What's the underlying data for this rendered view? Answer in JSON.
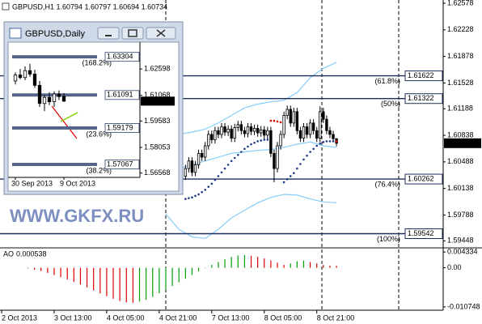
{
  "chart_data": [
    {
      "type": "candlestick",
      "header": "GBPUSD,H1 1.60794 1.60797 1.60694 1.60734",
      "watermark": "WWW.GKFX.RU",
      "x": [
        56,
        57,
        58,
        59,
        60,
        61,
        62,
        63,
        64,
        65,
        66,
        67,
        68,
        69,
        70,
        71,
        72,
        73,
        74,
        75,
        76,
        77,
        78,
        79,
        80,
        81,
        82,
        83,
        84,
        85,
        86,
        87,
        88,
        89,
        90,
        91,
        92,
        93,
        94,
        95,
        96,
        97,
        98,
        99,
        100,
        101,
        102
      ],
      "open": [
        1.603,
        1.604,
        1.605,
        1.6035,
        1.6045,
        1.606,
        1.6055,
        1.607,
        1.6085,
        1.6078,
        1.609,
        1.6085,
        1.6095,
        1.6088,
        1.6092,
        1.608,
        1.6094,
        1.6098,
        1.609,
        1.6086,
        1.6095,
        1.6089,
        1.6093,
        1.6087,
        1.6091,
        1.6084,
        1.609,
        1.606,
        1.604,
        1.607,
        1.6085,
        1.611,
        1.6118,
        1.61,
        1.6115,
        1.609,
        1.608,
        1.6095,
        1.6085,
        1.61,
        1.609,
        1.608,
        1.6115,
        1.6105,
        1.609,
        1.6085,
        1.60794
      ],
      "high": [
        1.6045,
        1.6055,
        1.6055,
        1.605,
        1.6065,
        1.6065,
        1.6075,
        1.609,
        1.609,
        1.6095,
        1.6095,
        1.61,
        1.61,
        1.6097,
        1.6097,
        1.6099,
        1.6103,
        1.6103,
        1.6095,
        1.61,
        1.61,
        1.6098,
        1.6098,
        1.6096,
        1.6096,
        1.6095,
        1.6095,
        1.6065,
        1.6075,
        1.609,
        1.6115,
        1.6123,
        1.6123,
        1.612,
        1.612,
        1.6095,
        1.61,
        1.61,
        1.6105,
        1.6105,
        1.6095,
        1.6122,
        1.612,
        1.611,
        1.6095,
        1.609,
        1.60797
      ],
      "low": [
        1.6025,
        1.6035,
        1.603,
        1.603,
        1.604,
        1.605,
        1.605,
        1.6065,
        1.6073,
        1.6073,
        1.608,
        1.608,
        1.6083,
        1.6083,
        1.6075,
        1.6075,
        1.6089,
        1.6085,
        1.6081,
        1.6081,
        1.6084,
        1.6084,
        1.6082,
        1.6082,
        1.6079,
        1.6079,
        1.6055,
        1.6022,
        1.6035,
        1.6065,
        1.608,
        1.6105,
        1.6095,
        1.6095,
        1.6085,
        1.6075,
        1.6075,
        1.608,
        1.608,
        1.6085,
        1.6075,
        1.6075,
        1.61,
        1.6085,
        1.608,
        1.6075,
        1.60694
      ],
      "close": [
        1.604,
        1.605,
        1.6035,
        1.6045,
        1.606,
        1.6055,
        1.607,
        1.6085,
        1.6078,
        1.609,
        1.6085,
        1.6095,
        1.6088,
        1.6092,
        1.608,
        1.6094,
        1.6098,
        1.609,
        1.6086,
        1.6095,
        1.6089,
        1.6093,
        1.6087,
        1.6091,
        1.6084,
        1.609,
        1.606,
        1.604,
        1.607,
        1.6085,
        1.611,
        1.6118,
        1.61,
        1.6115,
        1.609,
        1.608,
        1.6095,
        1.6085,
        1.61,
        1.609,
        1.608,
        1.6115,
        1.6105,
        1.609,
        1.6085,
        1.60794,
        1.60734
      ],
      "sar": [
        1.6,
        1.6001,
        1.6002,
        1.6004,
        1.6006,
        1.6009,
        1.6012,
        1.6016,
        1.602,
        1.6025,
        1.603,
        1.6035,
        1.604,
        1.6045,
        1.605,
        1.6054,
        1.6058,
        1.6062,
        1.6066,
        1.6069,
        1.6072,
        1.6074,
        1.6076,
        1.6077,
        1.6078,
        1.6078,
        1.6103,
        1.6103,
        1.6102,
        1.6101,
        1.6022,
        1.6026,
        1.603,
        1.6034,
        1.604,
        1.6046,
        1.6052,
        1.6057,
        1.6062,
        1.6066,
        1.607,
        1.6073,
        1.6075,
        1.6076,
        1.6076,
        1.6076,
        1.6076
      ],
      "band_x": [
        50,
        54,
        58,
        62,
        66,
        70,
        74,
        78,
        82,
        86,
        90,
        94,
        98,
        102
      ],
      "band_upper": [
        1.608,
        1.6085,
        1.6088,
        1.6092,
        1.61,
        1.611,
        1.612,
        1.6125,
        1.6128,
        1.613,
        1.614,
        1.616,
        1.6172,
        1.618
      ],
      "band_middle": [
        1.6035,
        1.604,
        1.6045,
        1.605,
        1.6055,
        1.606,
        1.6062,
        1.6064,
        1.6065,
        1.6068,
        1.6072,
        1.6075,
        1.607,
        1.6068
      ],
      "band_lower": [
        1.598,
        1.596,
        1.595,
        1.5948,
        1.596,
        1.5975,
        1.5985,
        1.5995,
        1.6002,
        1.6006,
        1.6005,
        1.6,
        1.5996,
        1.5995
      ],
      "up_color": "#ffffff",
      "down_color": "#000000",
      "wick_color": "#000000",
      "sar_below_color": "#1f3c88",
      "sar_above_color": "#e00000",
      "band_color": "#87cefa",
      "level_color": "#1c2f5c",
      "levels": [
        {
          "value": 1.61622,
          "tag": "(61.8%)"
        },
        {
          "value": 1.61322,
          "tag": "(50%)"
        },
        {
          "value": 1.60262,
          "tag": "(76.4%)"
        },
        {
          "value": 1.59542,
          "tag": "(100%)"
        }
      ],
      "xlim": [
        -0.5,
        134.5
      ],
      "xticks": [
        {
          "value": 0,
          "label": "2 Oct 2013"
        },
        {
          "value": 16,
          "label": "3 Oct 13:00"
        },
        {
          "value": 32,
          "label": "4 Oct 05:00"
        },
        {
          "value": 48,
          "label": "4 Oct 21:00"
        },
        {
          "value": 64,
          "label": "7 Oct 13:00"
        },
        {
          "value": 80,
          "label": "8 Oct 05:00"
        },
        {
          "value": 96,
          "label": "8 Oct 21:00"
        }
      ],
      "ylim": [
        1.59366,
        1.62621
      ],
      "yticks": [
        1.62578,
        1.62228,
        1.61878,
        1.61528,
        1.61188,
        1.60838,
        1.60488,
        1.60138,
        1.59788,
        1.59448
      ]
    },
    {
      "type": "bar",
      "title": "AO",
      "x": [
        8,
        10,
        12,
        14,
        16,
        18,
        20,
        22,
        24,
        26,
        28,
        30,
        32,
        34,
        36,
        38,
        40,
        42,
        44,
        46,
        48,
        50,
        52,
        54,
        56,
        58,
        60,
        62,
        64,
        66,
        68,
        70,
        72,
        74,
        76,
        78,
        80,
        82,
        84,
        86,
        88,
        90,
        92,
        94,
        96,
        98,
        100,
        102
      ],
      "values": [
        -0.0002,
        -0.0005,
        -0.0009,
        -0.0014,
        -0.002,
        -0.0026,
        -0.0032,
        -0.0039,
        -0.0046,
        -0.0054,
        -0.0062,
        -0.007,
        -0.0078,
        -0.0085,
        -0.0091,
        -0.0095,
        -0.0096,
        -0.0093,
        -0.0088,
        -0.008,
        -0.007,
        -0.006,
        -0.005,
        -0.004,
        -0.003,
        -0.002,
        -0.001,
        0.0,
        0.0008,
        0.0016,
        0.0024,
        0.003,
        0.0034,
        0.0035,
        0.0033,
        0.003,
        0.0026,
        0.002,
        0.0014,
        0.0008,
        0.0012,
        0.0018,
        0.002,
        0.0016,
        0.0012,
        0.0008,
        0.0006,
        0.000538
      ],
      "up_color": "#00a000",
      "down_color": "#e00000",
      "ylim": [
        -0.01166,
        0.00525
      ],
      "yticks": [
        0.004334,
        {
          "value": 0,
          "label": "0.00"
        },
        -0.010748
      ]
    },
    {
      "type": "candlestick",
      "title": "GBPUSD,Daily",
      "x": [
        0,
        1,
        2,
        3,
        4,
        5,
        6,
        7,
        8,
        9,
        10
      ],
      "open": [
        1.619,
        1.6225,
        1.621,
        1.625,
        1.623,
        1.6165,
        1.606,
        1.6095,
        1.607,
        1.6115,
        1.61
      ],
      "high": [
        1.624,
        1.626,
        1.6275,
        1.629,
        1.6255,
        1.619,
        1.611,
        1.6125,
        1.613,
        1.6135,
        1.612
      ],
      "low": [
        1.617,
        1.62,
        1.6195,
        1.6215,
        1.615,
        1.604,
        1.6015,
        1.605,
        1.604,
        1.608,
        1.60694
      ],
      "close": [
        1.6225,
        1.621,
        1.625,
        1.623,
        1.6165,
        1.606,
        1.6095,
        1.607,
        1.6115,
        1.61,
        1.60734
      ],
      "up_color": "#ffffff",
      "down_color": "#000000",
      "wick_color": "#000000",
      "level_color": "#56658a",
      "levels": [
        {
          "value": 1.63304,
          "tag": "(168.2%)"
        },
        {
          "value": 1.61091
        },
        {
          "value": 1.59179,
          "tag": "(23.6%)"
        },
        {
          "value": 1.57067,
          "tag": "(38.2%)"
        }
      ],
      "xlim": [
        -1.5,
        25.5
      ],
      "xticks": [
        {
          "value": 0,
          "label": "30 Sep 2013"
        },
        {
          "value": 10,
          "label": "9 Oct 2013"
        }
      ],
      "ylim": [
        1.56363,
        1.63919
      ],
      "yticks": [
        1.62598,
        1.61068,
        1.59583,
        1.58053,
        1.56568
      ]
    }
  ]
}
